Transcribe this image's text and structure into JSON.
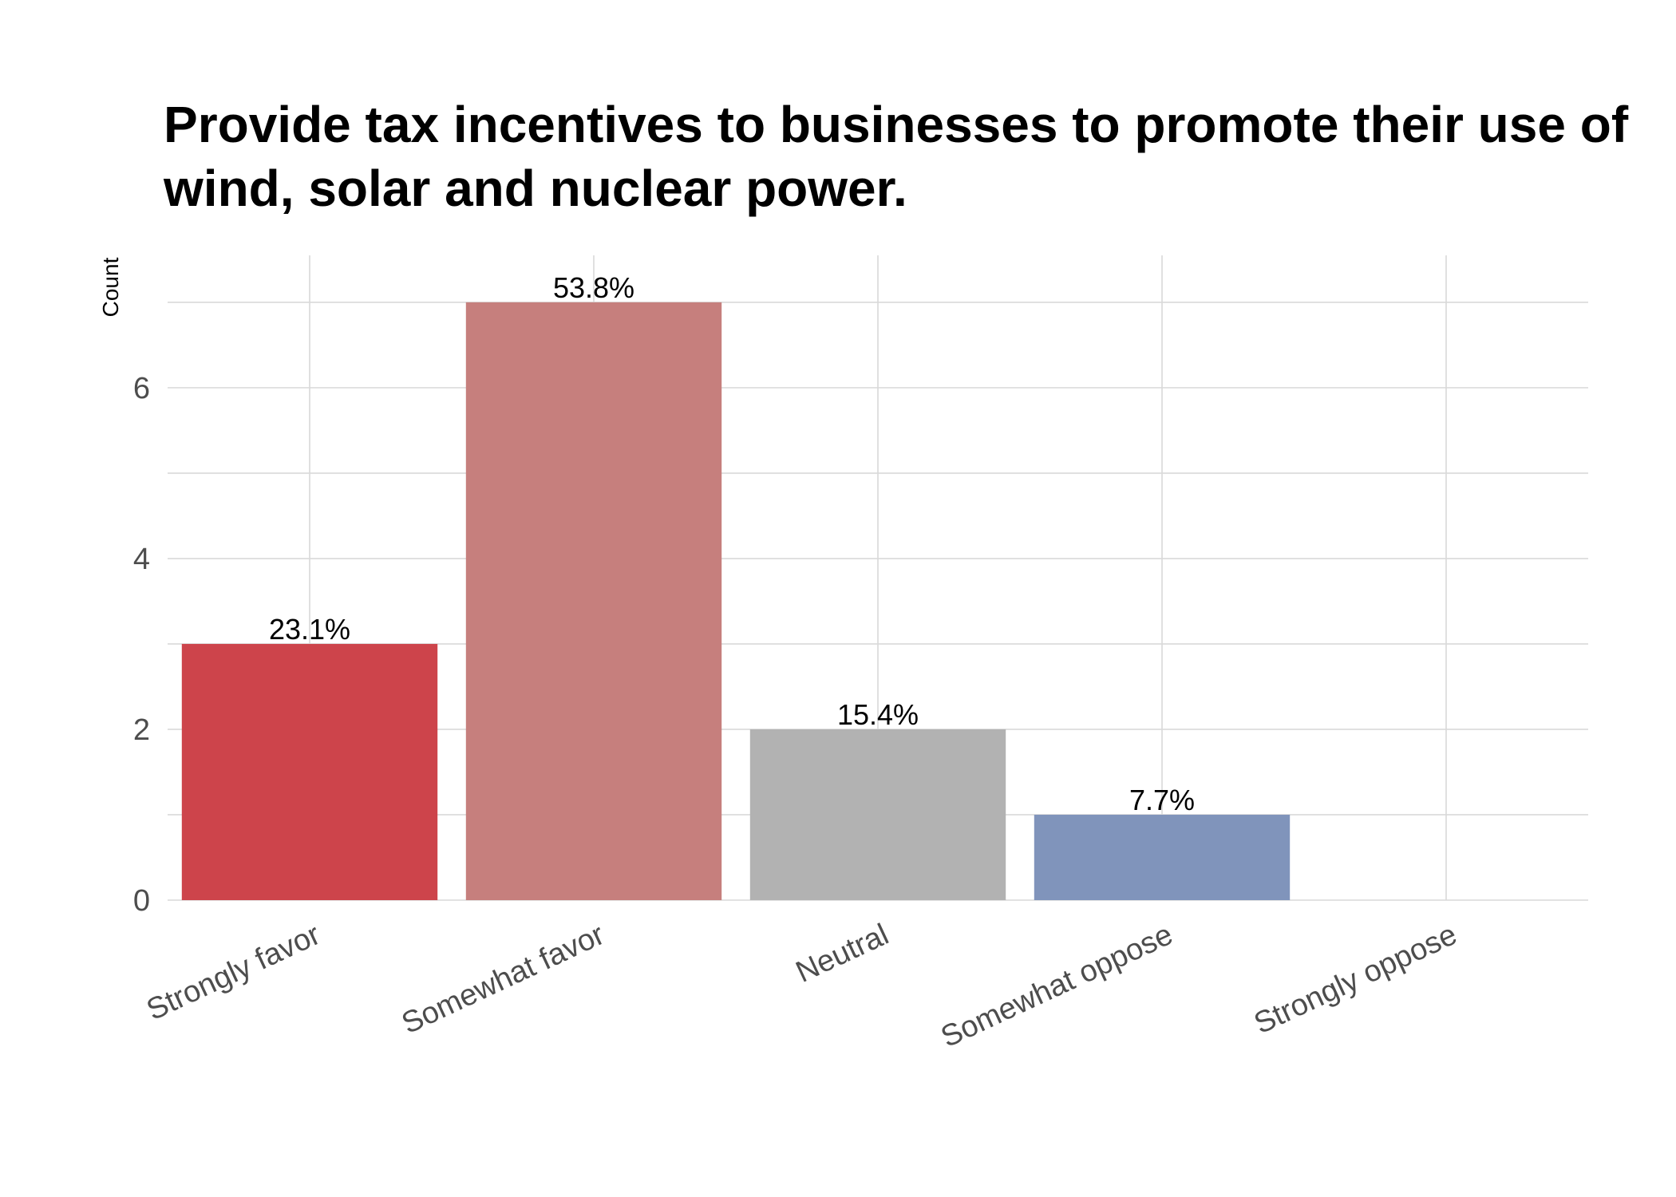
{
  "chart_data": {
    "type": "bar",
    "title_lines": [
      "Provide tax incentives to businesses to promote their use of",
      "wind, solar and nuclear power."
    ],
    "xlabel": "",
    "ylabel": "Count",
    "categories": [
      "Strongly favor",
      "Somewhat favor",
      "Neutral",
      "Somewhat oppose",
      "Strongly oppose"
    ],
    "values": [
      3,
      7,
      2,
      1,
      0
    ],
    "labels": [
      "23.1%",
      "53.8%",
      "15.4%",
      "7.7%",
      ""
    ],
    "colors": [
      "#cd444b",
      "#c67f7d",
      "#b2b2b2",
      "#8094bb",
      "#4b6aa8"
    ],
    "ylim": [
      0,
      7.55
    ],
    "yticks": [
      0,
      2,
      4,
      6
    ],
    "grid": true,
    "legend": "none"
  }
}
